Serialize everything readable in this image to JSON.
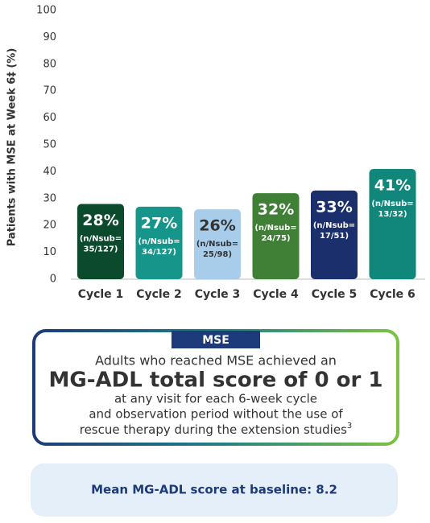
{
  "chart_data": {
    "type": "bar",
    "y_label": "Patients with MSE at Week 6‡ (%)",
    "categories": [
      "Cycle 1",
      "Cycle 2",
      "Cycle 3",
      "Cycle 4",
      "Cycle 5",
      "Cycle 6"
    ],
    "values": [
      28,
      27,
      26,
      32,
      33,
      41
    ],
    "value_labels": [
      "28%",
      "27%",
      "26%",
      "32%",
      "33%",
      "41%"
    ],
    "n_labels": [
      [
        "(n/Nsub=",
        "35/127)"
      ],
      [
        "(n/Nsub=",
        "34/127)"
      ],
      [
        "(n/Nsub=",
        "25/98)"
      ],
      [
        "(n/Nsub=",
        "24/75)"
      ],
      [
        "(n/Nsub=",
        "17/51)"
      ],
      [
        "(n/Nsub=",
        "13/32)"
      ]
    ],
    "colors": [
      "#0b4a2c",
      "#16968a",
      "#a8cdea",
      "#3f7f36",
      "#1b2f6d",
      "#11867a"
    ],
    "ylim": [
      0,
      100
    ],
    "yticks": [
      0,
      10,
      20,
      30,
      40,
      50,
      60,
      70,
      80,
      90,
      100
    ]
  },
  "mse_box": {
    "tab": "MSE",
    "line1": "Adults who reached MSE achieved an",
    "headline": "MG-ADL total score of 0 or 1",
    "line3": "at any visit for each 6-week cycle",
    "line4": "and observation period without the use of",
    "line5": "rescue therapy during the extension studies",
    "footnote_ref": "3"
  },
  "baseline_box": {
    "text": "Mean MG-ADL score at baseline: 8.2"
  }
}
